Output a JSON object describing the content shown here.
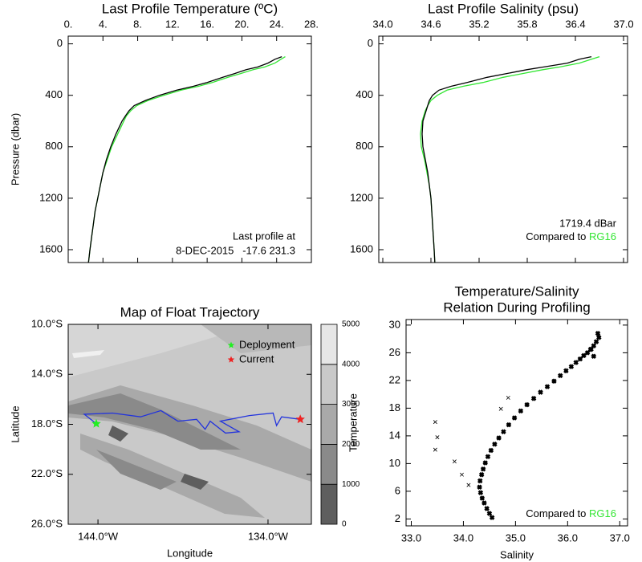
{
  "chart_data": [
    {
      "type": "line",
      "title": "Last Profile Temperature (ºC)",
      "ylabel": "Pressure (dbar)",
      "xaxis": "top",
      "yreverse": true,
      "xlim": [
        0,
        28
      ],
      "ylim": [
        -60,
        1700
      ],
      "xticks": [
        {
          "value": 0,
          "label": "0."
        },
        {
          "value": 4,
          "label": "4."
        },
        {
          "value": 8,
          "label": "8."
        },
        {
          "value": 12,
          "label": "12."
        },
        {
          "value": 16,
          "label": "16."
        },
        {
          "value": 20,
          "label": "20."
        },
        {
          "value": 24,
          "label": "24."
        },
        {
          "value": 28,
          "label": "28."
        }
      ],
      "yticks": [
        0,
        400,
        800,
        1200,
        1600
      ],
      "y": [
        100,
        120,
        150,
        180,
        200,
        230,
        260,
        300,
        330,
        360,
        400,
        440,
        480,
        520,
        560,
        600,
        700,
        800,
        900,
        1000,
        1100,
        1200,
        1300,
        1400,
        1500,
        1600,
        1720
      ],
      "series": [
        {
          "color": "#000000",
          "values": [
            24.6,
            23.8,
            23.0,
            21.8,
            20.5,
            19.2,
            17.8,
            16.0,
            14.4,
            12.5,
            10.5,
            8.9,
            7.6,
            7.0,
            6.6,
            6.2,
            5.5,
            4.9,
            4.4,
            4.0,
            3.7,
            3.4,
            3.1,
            2.9,
            2.7,
            2.5,
            2.3
          ]
        },
        {
          "name": "RG16",
          "color": "#33e633",
          "values": [
            25.0,
            24.5,
            23.8,
            22.6,
            21.3,
            19.9,
            18.4,
            16.6,
            15.0,
            13.0,
            11.0,
            9.2,
            7.9,
            7.2,
            6.7,
            6.4,
            5.7,
            5.0,
            4.5,
            4.0,
            3.7,
            3.4,
            3.1,
            2.9,
            2.7,
            2.5,
            2.3
          ]
        }
      ],
      "annotations": [
        "Last profile at",
        "8-DEC-2015   -17.6 231.3"
      ]
    },
    {
      "type": "line",
      "title": "Last Profile Salinity (psu)",
      "xaxis": "top",
      "yreverse": true,
      "xlim": [
        33.95,
        37.05
      ],
      "ylim": [
        -60,
        1700
      ],
      "xticks": [
        {
          "value": 34.0,
          "label": "34.0"
        },
        34.6,
        35.2,
        35.8,
        36.4,
        {
          "value": 37.0,
          "label": "37.0"
        }
      ],
      "yticks": [
        0,
        400,
        800,
        1200,
        1600
      ],
      "y": [
        100,
        120,
        150,
        180,
        200,
        230,
        260,
        300,
        330,
        360,
        400,
        440,
        480,
        520,
        560,
        600,
        700,
        800,
        900,
        1000,
        1100,
        1200,
        1300,
        1400,
        1500,
        1600,
        1720
      ],
      "series": [
        {
          "color": "#000000",
          "values": [
            36.6,
            36.45,
            36.3,
            36.0,
            35.8,
            35.55,
            35.3,
            35.05,
            34.85,
            34.7,
            34.62,
            34.58,
            34.56,
            34.54,
            34.52,
            34.5,
            34.49,
            34.5,
            34.53,
            34.56,
            34.58,
            34.6,
            34.61,
            34.62,
            34.63,
            34.64,
            34.65
          ]
        },
        {
          "name": "RG16",
          "color": "#33e633",
          "values": [
            36.7,
            36.6,
            36.45,
            36.2,
            36.0,
            35.75,
            35.5,
            35.25,
            35.0,
            34.8,
            34.68,
            34.6,
            34.56,
            34.53,
            34.51,
            34.49,
            34.47,
            34.48,
            34.52,
            34.55,
            34.58,
            34.6,
            34.61,
            34.62,
            34.63,
            34.64,
            34.65
          ]
        }
      ],
      "annotations": [
        "1719.4 dBar"
      ],
      "comparison_note": "Compared to"
    },
    {
      "type": "map",
      "title": "Map of Float Trajectory",
      "xlabel": "Longitude",
      "ylabel": "Latitude",
      "xlim": [
        -145.75,
        -131.45
      ],
      "ylim": [
        -26,
        -10
      ],
      "xticks": [
        {
          "value": -144,
          "label": "144.0°W"
        },
        {
          "value": -134,
          "label": "134.0°W"
        }
      ],
      "yticks": [
        {
          "value": -10,
          "label": "10.0°S"
        },
        {
          "value": -14,
          "label": "14.0°S"
        },
        {
          "value": -18,
          "label": "18.0°S"
        },
        {
          "value": -22,
          "label": "22.0°S"
        },
        {
          "value": -26,
          "label": "26.0°S"
        }
      ],
      "track_color": "#2233dd",
      "lon": [
        -144.1,
        -144.8,
        -143.15,
        -141.5,
        -140.3,
        -139.3,
        -138.2,
        -137.7,
        -137.4,
        -136.5,
        -135.7,
        -136.8,
        -135.1,
        -133.7,
        -133.5,
        -133.2,
        -132.1
      ],
      "lat": [
        -17.95,
        -17.2,
        -17.1,
        -17.4,
        -16.9,
        -17.75,
        -17.6,
        -18.4,
        -17.75,
        -18.7,
        -18.6,
        -17.75,
        -17.3,
        -17.1,
        -18.1,
        -17.4,
        -17.6
      ],
      "markers": [
        {
          "name": "Deployment",
          "color": "#22ee22",
          "lon": -144.1,
          "lat": -17.95
        },
        {
          "name": "Current",
          "color": "#ee2222",
          "lon": -132.1,
          "lat": -17.6
        }
      ],
      "levels": [
        0,
        1000,
        2000,
        3000,
        4000,
        5000
      ],
      "level_colors": [
        "#5e5e5e",
        "#8a8a8a",
        "#a9a9a9",
        "#c9c9c9",
        "#e6e6e6"
      ]
    },
    {
      "type": "scatter",
      "title": [
        "Temperature/Salinity",
        "Relation During Profiling"
      ],
      "xlabel": "Salinity",
      "ylabel": "Temperature",
      "xlim": [
        32.9,
        37.15
      ],
      "ylim": [
        1,
        30.8
      ],
      "xticks": [
        {
          "value": 33,
          "label": "33.0"
        },
        {
          "value": 34,
          "label": "34.0"
        },
        {
          "value": 35,
          "label": "35.0"
        },
        {
          "value": 36,
          "label": "36.0"
        },
        {
          "value": 37,
          "label": "37.0"
        }
      ],
      "yticks": [
        2,
        6,
        10,
        14,
        18,
        22,
        26,
        30
      ],
      "color": "#000000",
      "x": [
        34.55,
        34.5,
        34.45,
        34.4,
        34.36,
        34.33,
        34.31,
        34.32,
        34.35,
        34.38,
        34.42,
        34.47,
        34.53,
        34.6,
        34.68,
        34.77,
        34.87,
        34.98,
        35.1,
        35.22,
        35.35,
        35.48,
        35.61,
        35.74,
        35.86,
        35.97,
        36.07,
        36.16,
        36.24,
        36.31,
        36.38,
        36.44,
        36.5,
        36.55,
        36.6,
        36.58,
        36.5,
        36.45,
        33.46,
        33.5,
        33.46,
        33.83,
        33.97,
        34.1,
        34.72,
        34.86
      ],
      "values": [
        2.2,
        2.8,
        3.5,
        4.3,
        5.0,
        5.8,
        6.6,
        7.5,
        8.4,
        9.2,
        10.1,
        11.0,
        11.9,
        12.8,
        13.7,
        14.6,
        15.6,
        16.6,
        17.6,
        18.5,
        19.4,
        20.3,
        21.1,
        21.9,
        22.7,
        23.4,
        24.0,
        24.6,
        25.1,
        25.6,
        26.0,
        26.5,
        27.0,
        27.6,
        28.2,
        28.8,
        25.5,
        26.5,
        16.0,
        13.8,
        12.0,
        10.3,
        8.4,
        6.9,
        17.9,
        19.5
      ],
      "comparison_note": "Compared to",
      "comparison": "RG16",
      "comparison_color": "#33e633"
    }
  ]
}
